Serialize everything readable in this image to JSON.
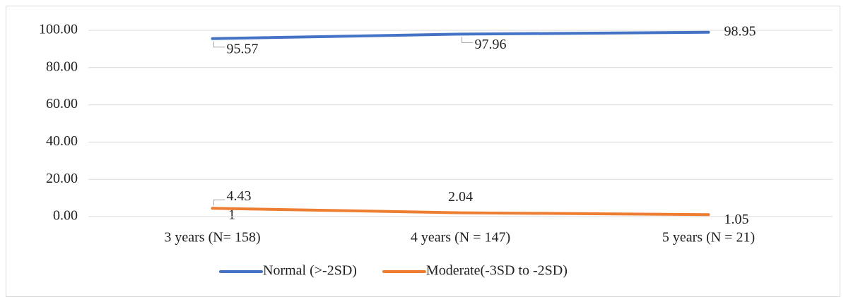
{
  "chart_data": {
    "type": "line",
    "categories": [
      "3 years (N= 158)",
      "4 years (N = 147)",
      "5 years (N = 21)"
    ],
    "series": [
      {
        "name": "Normal (>-2SD)",
        "color": "#4472c4",
        "values": [
          95.57,
          97.96,
          98.95
        ]
      },
      {
        "name": "Moderate(-3SD to -2SD)",
        "color": "#ed7d31",
        "values": [
          4.43,
          2.04,
          1.05
        ]
      }
    ],
    "annotation": "1",
    "ylim": [
      0,
      100
    ],
    "yticks": [
      {
        "value": 0,
        "label": "0.00"
      },
      {
        "value": 20,
        "label": "20.00"
      },
      {
        "value": 40,
        "label": "40.00"
      },
      {
        "value": 60,
        "label": "60.00"
      },
      {
        "value": 80,
        "label": "80.00"
      },
      {
        "value": 100,
        "label": "100.00"
      }
    ],
    "grid": true,
    "legend": "bottom"
  }
}
